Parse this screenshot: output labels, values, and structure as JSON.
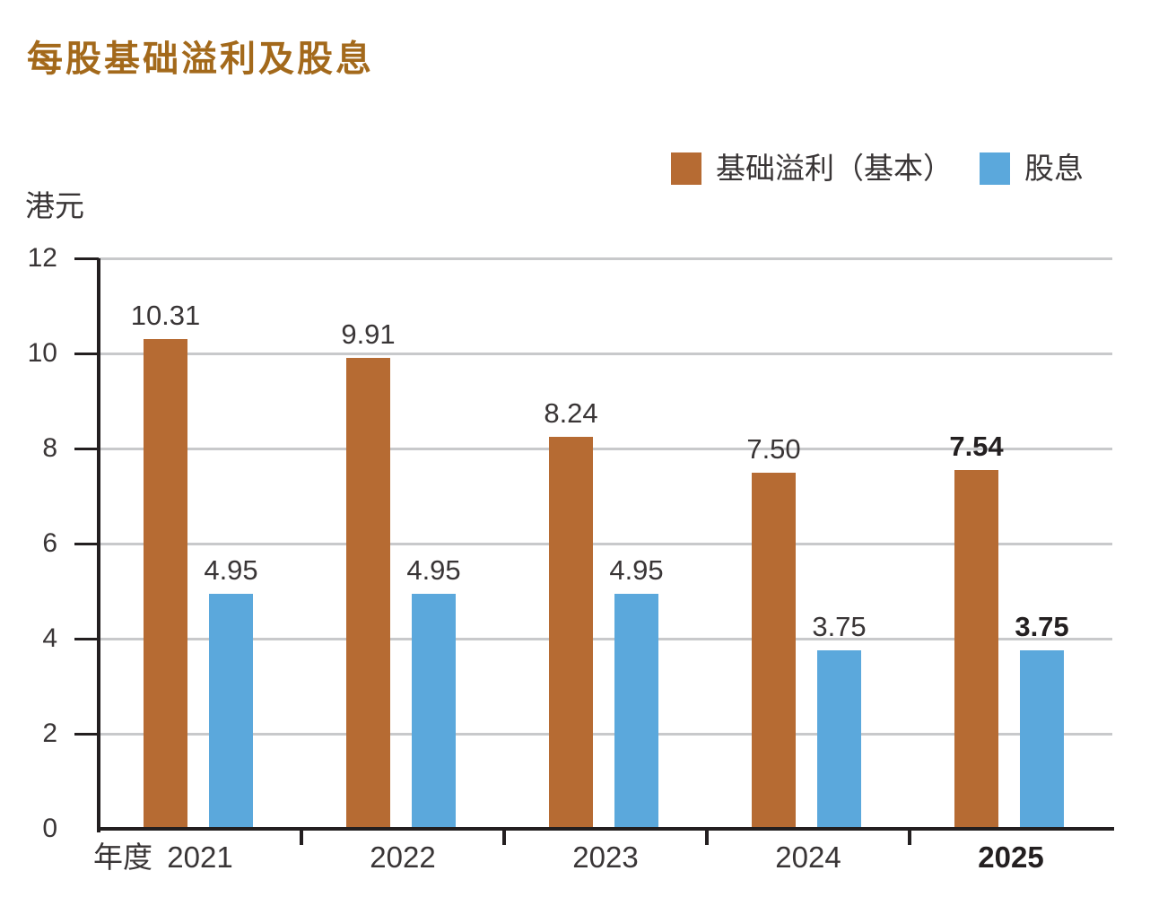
{
  "colors": {
    "background": "#FFFFFF",
    "title": "#A3691B",
    "text": "#393536",
    "emphasis": "#231F20",
    "grid": "#C8C9CB",
    "axis": "#231F20",
    "bar_underlying_profit": "#B66B33",
    "bar_dividend": "#5BA8DC"
  },
  "chart_data": {
    "type": "bar",
    "title": "每股基础溢利及股息",
    "ylabel": "港元",
    "xlabel": "年度",
    "categories": [
      "2021",
      "2022",
      "2023",
      "2024",
      "2025"
    ],
    "series": [
      {
        "name": "基础溢利（基本）",
        "color": "#B66B33",
        "values": [
          10.31,
          9.91,
          8.24,
          7.5,
          7.54
        ]
      },
      {
        "name": "股息",
        "color": "#5BA8DC",
        "values": [
          4.95,
          4.95,
          4.95,
          3.75,
          3.75
        ]
      }
    ],
    "ylim": [
      0,
      12
    ],
    "yticks": [
      0,
      2,
      4,
      6,
      8,
      10,
      12
    ],
    "grid": true,
    "legend_position": "top-right",
    "emphasized_category": "2025",
    "value_label_decimals": 2
  }
}
